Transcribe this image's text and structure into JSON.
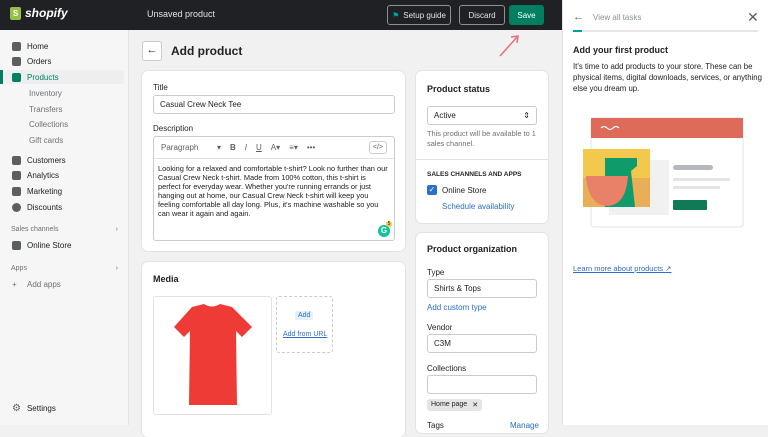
{
  "topbar": {
    "brand": "shopify",
    "title": "Unsaved product",
    "setup_guide": "Setup guide",
    "discard": "Discard",
    "save": "Save"
  },
  "sidebar": {
    "items": [
      {
        "label": "Home"
      },
      {
        "label": "Orders"
      },
      {
        "label": "Products"
      },
      {
        "label": "Inventory"
      },
      {
        "label": "Transfers"
      },
      {
        "label": "Collections"
      },
      {
        "label": "Gift cards"
      },
      {
        "label": "Customers"
      },
      {
        "label": "Analytics"
      },
      {
        "label": "Marketing"
      },
      {
        "label": "Discounts"
      }
    ],
    "sales_channels": "Sales channels",
    "online_store": "Online Store",
    "apps": "Apps",
    "add_apps": "Add apps",
    "settings": "Settings"
  },
  "main": {
    "page_title": "Add product",
    "title_label": "Title",
    "title_value": "Casual Crew Neck Tee",
    "description_label": "Description",
    "paragraph": "Paragraph",
    "description": "Looking for a relaxed and comfortable t-shirt? Look no further than our Casual Crew Neck t-shirt. Made from 100% cotton, this t-shirt is perfect for everyday wear. Whether you're running errands or just hanging out at home, our Casual Crew Neck t-shirt will keep you feeling comfortable all day long. Plus, it's machine washable so you can wear it again and again.",
    "grammarly_count": "5",
    "media_title": "Media",
    "add": "Add",
    "add_from_url": "Add from URL"
  },
  "status": {
    "title": "Product status",
    "value": "Active",
    "note": "This product will be available to 1 sales channel.",
    "channels_heading": "SALES CHANNELS AND APPS",
    "online_store": "Online Store",
    "online_store_checked": true,
    "schedule": "Schedule availability"
  },
  "organization": {
    "title": "Product organization",
    "type_label": "Type",
    "type_value": "Shirts & Tops",
    "add_custom_type": "Add custom type",
    "vendor_label": "Vendor",
    "vendor_value": "C3M",
    "collections_label": "Collections",
    "collection_tag": "Home page",
    "tags_label": "Tags",
    "manage": "Manage"
  },
  "panel": {
    "back": "View all tasks",
    "progress": 0.05,
    "heading": "Add your first product",
    "text": "It's time to add products to your store. These can be physical items, digital downloads, services, or anything else you dream up.",
    "learn_more": "Learn more about products"
  },
  "colors": {
    "accent": "#008060",
    "link": "#2c6ecb",
    "topbar": "#1f2124"
  }
}
